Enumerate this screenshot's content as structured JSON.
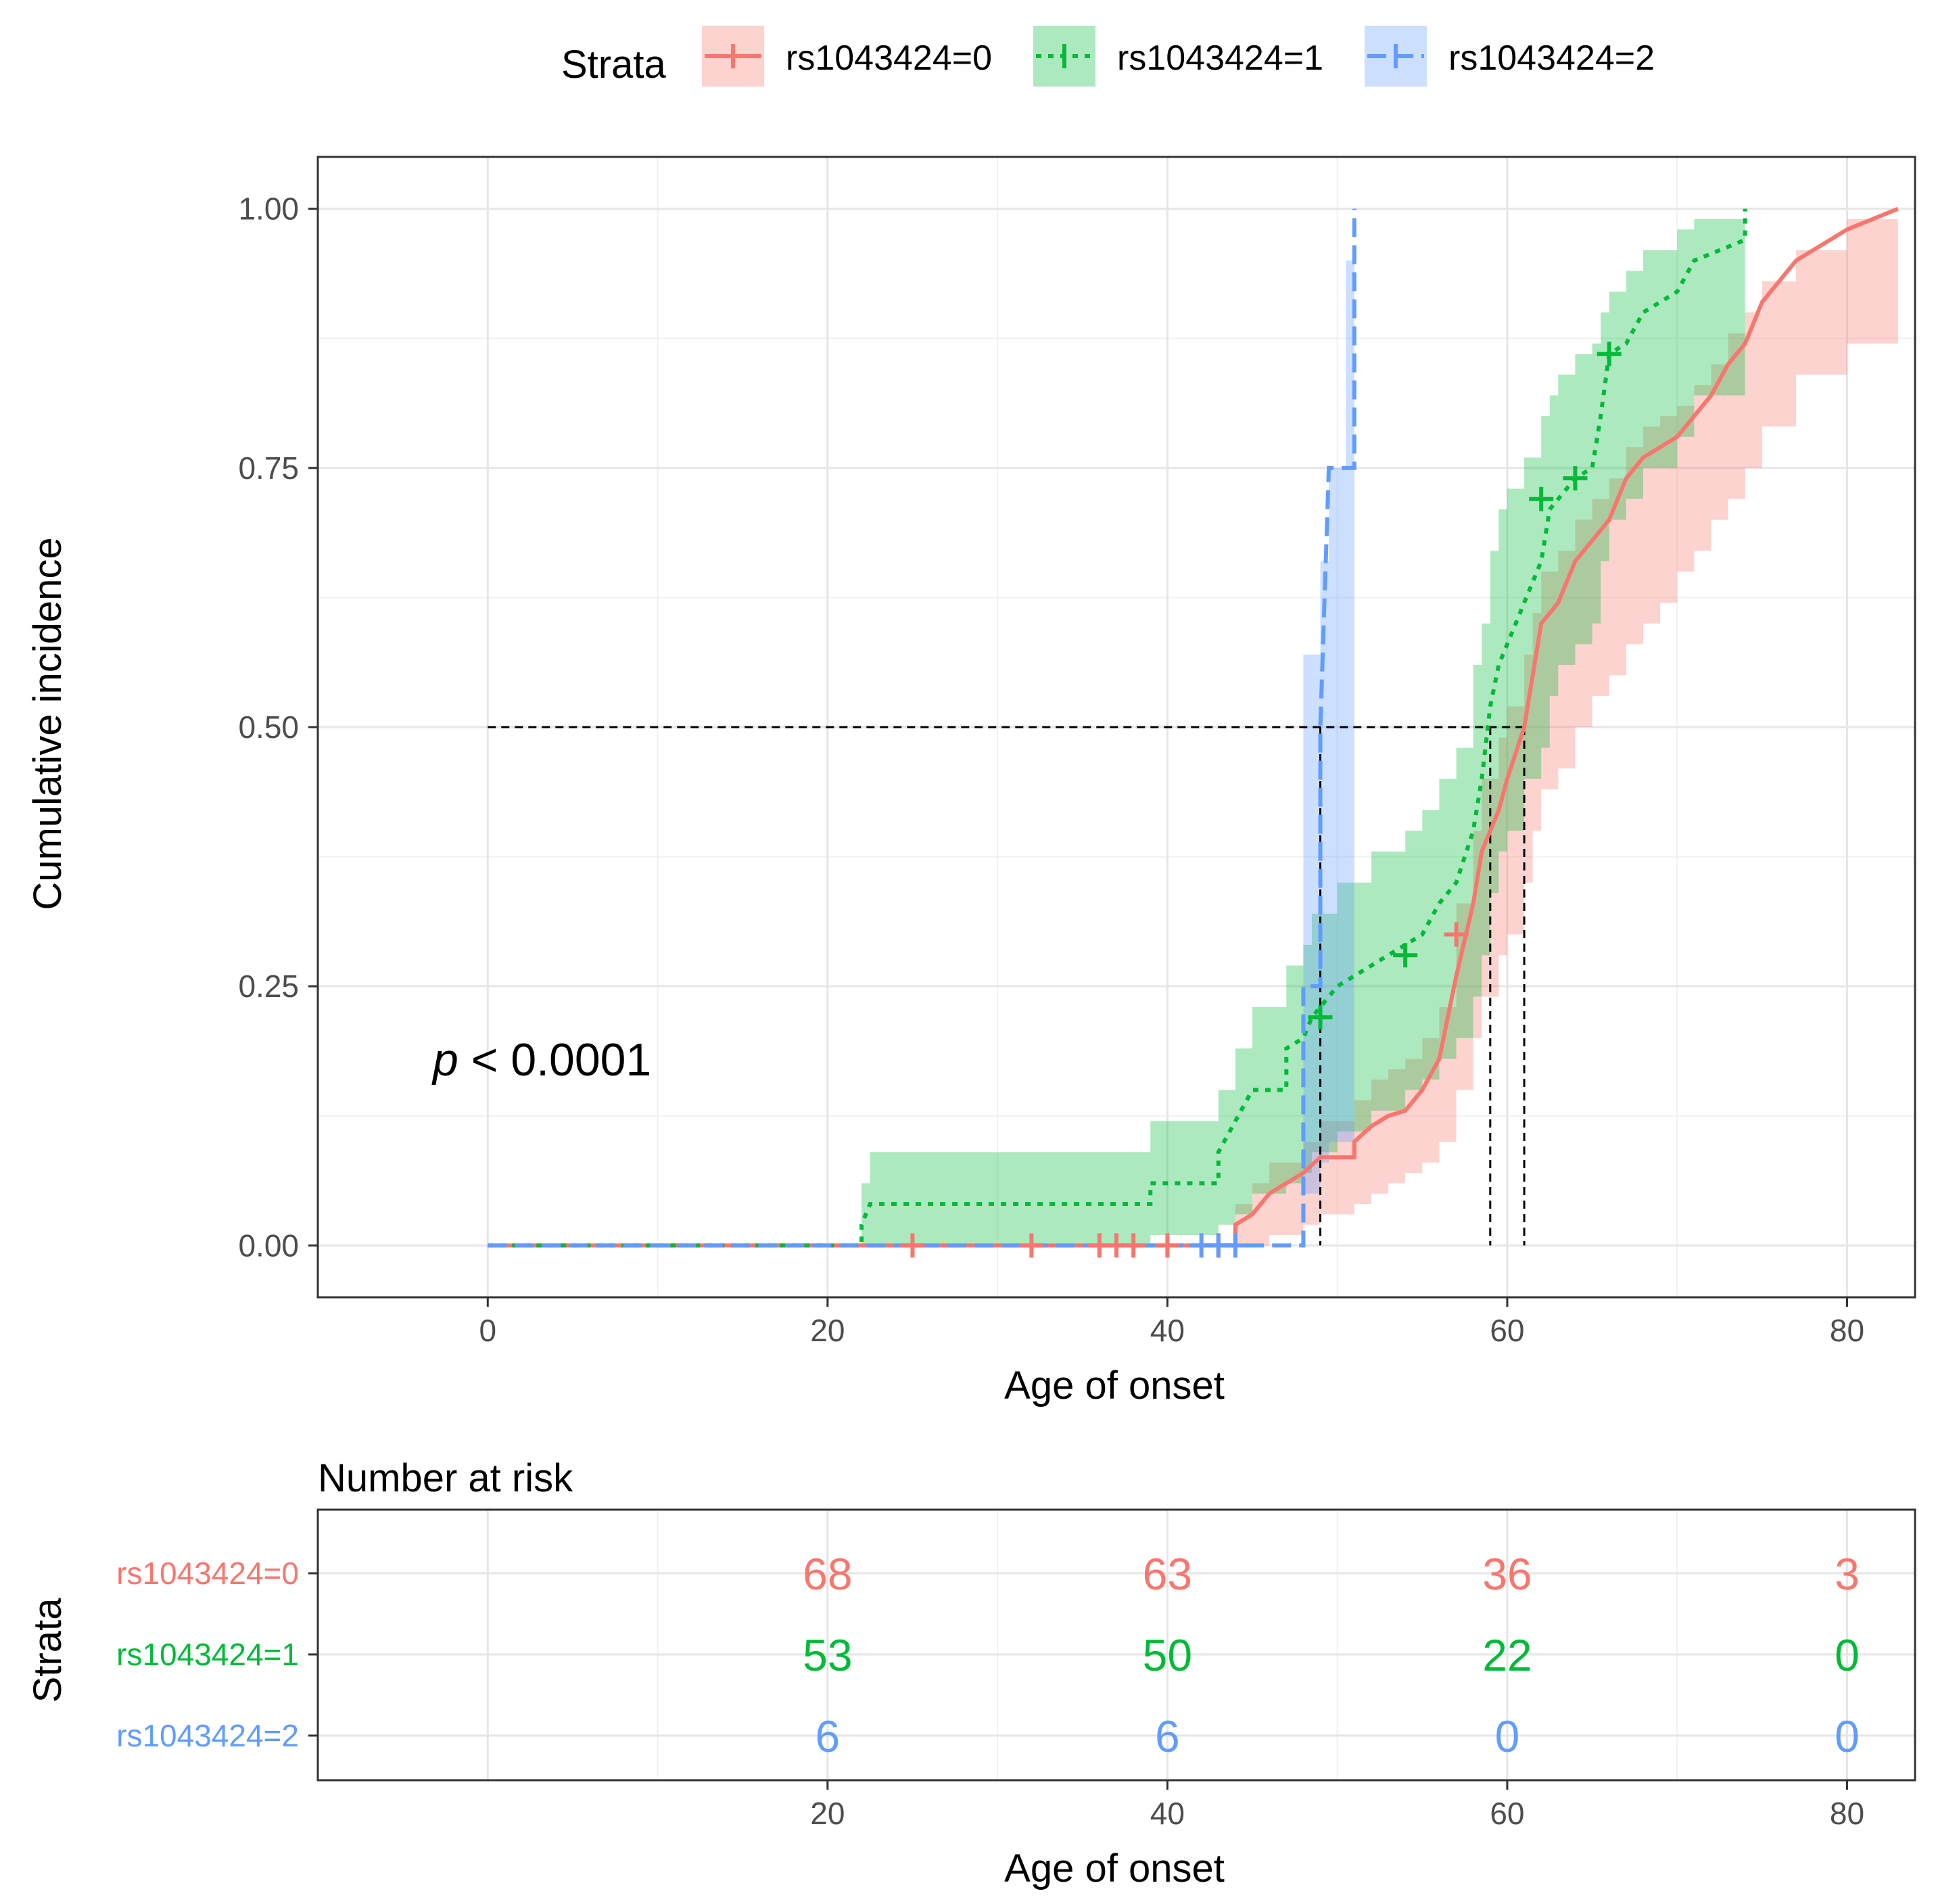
{
  "legend": {
    "title": "Strata",
    "items": [
      {
        "label": "rs1043424=0",
        "color": "#F8766D",
        "fill": "#F8766D",
        "dash": "solid"
      },
      {
        "label": "rs1043424=1",
        "color": "#00BA38",
        "fill": "#00BA38",
        "dash": "dotted"
      },
      {
        "label": "rs1043424=2",
        "color": "#619CFF",
        "fill": "#619CFF",
        "dash": "dashed"
      }
    ]
  },
  "annotation": {
    "p_symbol": "p",
    "p_rest": " < 0.0001"
  },
  "chart_data": {
    "type": "line",
    "subtype": "cumulative-incidence step curves with confidence bands",
    "xlabel": "Age of onset",
    "ylabel": "Cumulative incidence",
    "xlim": [
      -10,
      84
    ],
    "ylim": [
      -0.05,
      1.05
    ],
    "xticks": [
      0,
      20,
      40,
      60,
      80
    ],
    "xtick_labels": [
      "0",
      "20",
      "40",
      "60",
      "80"
    ],
    "yticks": [
      0,
      0.25,
      0.5,
      0.75,
      1.0
    ],
    "ytick_labels": [
      "0.00",
      "0.25",
      "0.50",
      "0.75",
      "1.00"
    ],
    "grid": true,
    "median_line": {
      "y": 0.5,
      "x_start": 0,
      "medians": [
        {
          "strata": "rs1043424=2",
          "x": 49
        },
        {
          "strata": "rs1043424=1",
          "x": 59
        },
        {
          "strata": "rs1043424=0",
          "x": 61
        }
      ]
    },
    "series": [
      {
        "name": "rs1043424=0",
        "steps": [
          [
            0,
            0
          ],
          [
            44,
            0
          ],
          [
            44,
            0.02
          ],
          [
            45,
            0.03
          ],
          [
            46,
            0.05
          ],
          [
            48,
            0.07
          ],
          [
            49,
            0.085
          ],
          [
            51,
            0.085
          ],
          [
            51,
            0.1
          ],
          [
            52,
            0.115
          ],
          [
            53,
            0.125
          ],
          [
            54,
            0.13
          ],
          [
            55,
            0.15
          ],
          [
            56,
            0.18
          ],
          [
            57,
            0.26
          ],
          [
            58,
            0.33
          ],
          [
            58.5,
            0.38
          ],
          [
            59.5,
            0.42
          ],
          [
            60,
            0.45
          ],
          [
            61,
            0.5
          ],
          [
            61.5,
            0.55
          ],
          [
            62,
            0.6
          ],
          [
            63,
            0.62
          ],
          [
            64,
            0.66
          ],
          [
            65,
            0.68
          ],
          [
            66,
            0.7
          ],
          [
            67,
            0.74
          ],
          [
            68,
            0.76
          ],
          [
            69,
            0.77
          ],
          [
            70,
            0.78
          ],
          [
            71,
            0.8
          ],
          [
            72,
            0.82
          ],
          [
            73,
            0.85
          ],
          [
            74,
            0.87
          ],
          [
            75,
            0.91
          ],
          [
            77,
            0.95
          ],
          [
            80,
            0.98
          ],
          [
            83,
            1.0
          ]
        ],
        "band": [
          [
            44,
            0,
            0.04
          ],
          [
            45,
            0,
            0.06
          ],
          [
            46,
            0.01,
            0.08
          ],
          [
            48,
            0.02,
            0.1
          ],
          [
            49,
            0.03,
            0.12
          ],
          [
            51,
            0.04,
            0.14
          ],
          [
            52,
            0.05,
            0.16
          ],
          [
            53,
            0.06,
            0.17
          ],
          [
            54,
            0.07,
            0.18
          ],
          [
            55,
            0.08,
            0.2
          ],
          [
            56,
            0.1,
            0.23
          ],
          [
            57,
            0.15,
            0.33
          ],
          [
            58,
            0.2,
            0.4
          ],
          [
            58.5,
            0.24,
            0.45
          ],
          [
            59.5,
            0.28,
            0.49
          ],
          [
            60,
            0.3,
            0.52
          ],
          [
            61,
            0.35,
            0.57
          ],
          [
            61.5,
            0.4,
            0.61
          ],
          [
            62,
            0.44,
            0.65
          ],
          [
            63,
            0.46,
            0.67
          ],
          [
            64,
            0.5,
            0.7
          ],
          [
            65,
            0.53,
            0.72
          ],
          [
            66,
            0.55,
            0.74
          ],
          [
            67,
            0.58,
            0.77
          ],
          [
            68,
            0.6,
            0.79
          ],
          [
            69,
            0.62,
            0.8
          ],
          [
            70,
            0.65,
            0.81
          ],
          [
            71,
            0.67,
            0.83
          ],
          [
            72,
            0.7,
            0.85
          ],
          [
            73,
            0.72,
            0.88
          ],
          [
            74,
            0.75,
            0.9
          ],
          [
            75,
            0.79,
            0.93
          ],
          [
            77,
            0.84,
            0.96
          ],
          [
            80,
            0.87,
            0.99
          ],
          [
            83,
            0.87,
            1.0
          ]
        ],
        "censors": [
          [
            25,
            0
          ],
          [
            32,
            0
          ],
          [
            36,
            0
          ],
          [
            37,
            0
          ],
          [
            38,
            0
          ],
          [
            40,
            0
          ],
          [
            43,
            0
          ],
          [
            57,
            0.3
          ]
        ]
      },
      {
        "name": "rs1043424=1",
        "steps": [
          [
            0,
            0
          ],
          [
            22,
            0
          ],
          [
            22,
            0.02
          ],
          [
            22.5,
            0.04
          ],
          [
            39,
            0.04
          ],
          [
            39,
            0.06
          ],
          [
            43,
            0.06
          ],
          [
            43,
            0.09
          ],
          [
            44,
            0.12
          ],
          [
            45,
            0.15
          ],
          [
            47,
            0.15
          ],
          [
            47,
            0.19
          ],
          [
            48,
            0.2
          ],
          [
            48.5,
            0.22
          ],
          [
            50,
            0.25
          ],
          [
            52,
            0.27
          ],
          [
            54,
            0.29
          ],
          [
            55,
            0.3
          ],
          [
            56,
            0.33
          ],
          [
            57,
            0.35
          ],
          [
            58,
            0.4
          ],
          [
            58.5,
            0.45
          ],
          [
            59,
            0.52
          ],
          [
            59.5,
            0.56
          ],
          [
            60,
            0.58
          ],
          [
            61,
            0.62
          ],
          [
            62,
            0.66
          ],
          [
            62.5,
            0.71
          ],
          [
            63,
            0.72
          ],
          [
            64,
            0.74
          ],
          [
            65,
            0.75
          ],
          [
            65.5,
            0.8
          ],
          [
            66,
            0.86
          ],
          [
            67,
            0.87
          ],
          [
            68,
            0.9
          ],
          [
            70,
            0.92
          ],
          [
            71,
            0.95
          ],
          [
            74,
            0.97
          ],
          [
            74,
            1.0
          ]
        ],
        "band": [
          [
            22,
            0,
            0.06
          ],
          [
            22.5,
            0,
            0.09
          ],
          [
            39,
            0.01,
            0.12
          ],
          [
            43,
            0.02,
            0.15
          ],
          [
            44,
            0.03,
            0.19
          ],
          [
            45,
            0.05,
            0.23
          ],
          [
            47,
            0.06,
            0.27
          ],
          [
            48,
            0.07,
            0.29
          ],
          [
            48.5,
            0.09,
            0.32
          ],
          [
            50,
            0.11,
            0.35
          ],
          [
            52,
            0.13,
            0.38
          ],
          [
            54,
            0.15,
            0.4
          ],
          [
            55,
            0.16,
            0.42
          ],
          [
            56,
            0.18,
            0.45
          ],
          [
            57,
            0.2,
            0.48
          ],
          [
            58,
            0.24,
            0.56
          ],
          [
            58.5,
            0.28,
            0.6
          ],
          [
            59,
            0.34,
            0.67
          ],
          [
            59.5,
            0.38,
            0.71
          ],
          [
            60,
            0.4,
            0.73
          ],
          [
            61,
            0.45,
            0.76
          ],
          [
            62,
            0.48,
            0.8
          ],
          [
            62.5,
            0.53,
            0.82
          ],
          [
            63,
            0.56,
            0.84
          ],
          [
            64,
            0.58,
            0.86
          ],
          [
            65,
            0.6,
            0.87
          ],
          [
            65.5,
            0.66,
            0.9
          ],
          [
            66,
            0.7,
            0.92
          ],
          [
            67,
            0.72,
            0.94
          ],
          [
            68,
            0.75,
            0.96
          ],
          [
            70,
            0.78,
            0.98
          ],
          [
            71,
            0.82,
            0.99
          ],
          [
            74,
            0.82,
            0.99
          ]
        ],
        "censors": [
          [
            49,
            0.22
          ],
          [
            54,
            0.28
          ],
          [
            62,
            0.72
          ],
          [
            64,
            0.74
          ],
          [
            66,
            0.86
          ]
        ]
      },
      {
        "name": "rs1043424=2",
        "steps": [
          [
            0,
            0
          ],
          [
            48,
            0
          ],
          [
            48,
            0.25
          ],
          [
            49,
            0.25
          ],
          [
            49,
            0.5
          ],
          [
            49.5,
            0.75
          ],
          [
            51,
            0.75
          ],
          [
            51,
            1.0
          ]
        ],
        "band": [
          [
            48,
            0.05,
            0.57
          ],
          [
            49,
            0.08,
            0.66
          ],
          [
            49.5,
            0.1,
            0.75
          ],
          [
            50.5,
            0.1,
            0.95
          ],
          [
            51,
            0.1,
            0.95
          ]
        ],
        "censors": [
          [
            42,
            0
          ],
          [
            43,
            0
          ],
          [
            44,
            0
          ]
        ]
      }
    ],
    "risk_table": {
      "title": "Number at risk",
      "ylabel": "Strata",
      "xlabel": "Age of onset",
      "xticks": [
        20,
        40,
        60,
        80
      ],
      "xtick_labels": [
        "20",
        "40",
        "60",
        "80"
      ],
      "rows": [
        {
          "strata": "rs1043424=0",
          "values": [
            "68",
            "63",
            "36",
            "3"
          ]
        },
        {
          "strata": "rs1043424=1",
          "values": [
            "53",
            "50",
            "22",
            "0"
          ]
        },
        {
          "strata": "rs1043424=2",
          "values": [
            "6",
            "6",
            "0",
            "0"
          ]
        }
      ]
    }
  }
}
